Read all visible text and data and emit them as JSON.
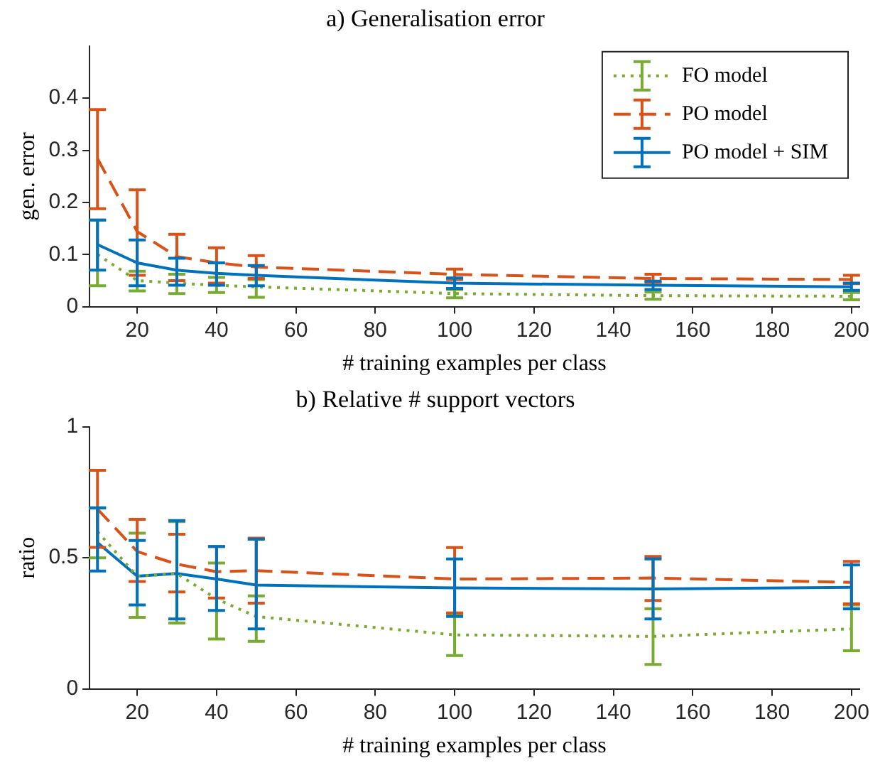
{
  "chart_data": [
    {
      "type": "line",
      "title": "a) Generalisation error",
      "xlabel": "# training examples per class",
      "ylabel": "gen. error",
      "x": [
        10,
        20,
        30,
        40,
        50,
        100,
        150,
        200
      ],
      "xlim": [
        8,
        202
      ],
      "xticks": [
        20,
        40,
        60,
        80,
        100,
        120,
        140,
        160,
        180,
        200
      ],
      "ylim": [
        0,
        0.5
      ],
      "yticks": [
        0,
        0.1,
        0.2,
        0.3,
        0.4
      ],
      "legend": "top right",
      "series": [
        {
          "name": "FO model",
          "color": "#77ac30",
          "line_style": "dotted",
          "values": [
            0.1,
            0.05,
            0.045,
            0.041,
            0.038,
            0.025,
            0.021,
            0.02
          ],
          "errors": [
            [
              0.04,
              0.166
            ],
            [
              0.03,
              0.068
            ],
            [
              0.025,
              0.062
            ],
            [
              0.027,
              0.056
            ],
            [
              0.018,
              0.052
            ],
            [
              0.017,
              0.033
            ],
            [
              0.014,
              0.028
            ],
            [
              0.013,
              0.027
            ]
          ]
        },
        {
          "name": "PO model",
          "color": "#d95319",
          "line_style": "dashed",
          "values": [
            0.284,
            0.144,
            0.096,
            0.084,
            0.076,
            0.062,
            0.054,
            0.052
          ],
          "errors": [
            [
              0.188,
              0.378
            ],
            [
              0.06,
              0.224
            ],
            [
              0.05,
              0.139
            ],
            [
              0.045,
              0.113
            ],
            [
              0.054,
              0.098
            ],
            [
              0.052,
              0.072
            ],
            [
              0.046,
              0.062
            ],
            [
              0.044,
              0.06
            ]
          ]
        },
        {
          "name": "PO model + SIM",
          "color": "#0072bd",
          "line_style": "solid",
          "values": [
            0.119,
            0.084,
            0.07,
            0.064,
            0.06,
            0.045,
            0.041,
            0.038
          ],
          "errors": [
            [
              0.07,
              0.166
            ],
            [
              0.04,
              0.128
            ],
            [
              0.041,
              0.093
            ],
            [
              0.041,
              0.084
            ],
            [
              0.04,
              0.079
            ],
            [
              0.035,
              0.055
            ],
            [
              0.033,
              0.049
            ],
            [
              0.031,
              0.045
            ]
          ]
        }
      ]
    },
    {
      "type": "line",
      "title": "b) Relative # support vectors",
      "xlabel": "# training examples per class",
      "ylabel": "ratio",
      "x": [
        10,
        20,
        30,
        40,
        50,
        100,
        150,
        200
      ],
      "xlim": [
        8,
        202
      ],
      "xticks": [
        20,
        40,
        60,
        80,
        100,
        120,
        140,
        160,
        180,
        200
      ],
      "ylim": [
        0,
        1
      ],
      "yticks": [
        0,
        0.5,
        1
      ],
      "series": [
        {
          "color": "#77ac30",
          "line_style": "dotted",
          "values": [
            0.6,
            0.43,
            0.44,
            0.343,
            0.276,
            0.206,
            0.2,
            0.229
          ],
          "errors": [
            [
              0.5,
              0.69
            ],
            [
              0.273,
              0.594
            ],
            [
              0.251,
              0.638
            ],
            [
              0.19,
              0.48
            ],
            [
              0.181,
              0.355
            ],
            [
              0.127,
              0.285
            ],
            [
              0.093,
              0.305
            ],
            [
              0.145,
              0.32
            ]
          ]
        },
        {
          "color": "#d95319",
          "line_style": "dashed",
          "values": [
            0.686,
            0.524,
            0.476,
            0.447,
            0.451,
            0.419,
            0.423,
            0.406
          ],
          "errors": [
            [
              0.54,
              0.834
            ],
            [
              0.41,
              0.647
            ],
            [
              0.37,
              0.59
            ],
            [
              0.347,
              0.543
            ],
            [
              0.327,
              0.575
            ],
            [
              0.29,
              0.539
            ],
            [
              0.337,
              0.505
            ],
            [
              0.324,
              0.486
            ]
          ]
        },
        {
          "color": "#0072bd",
          "line_style": "solid",
          "values": [
            0.558,
            0.43,
            0.44,
            0.419,
            0.396,
            0.385,
            0.381,
            0.387
          ],
          "errors": [
            [
              0.45,
              0.691
            ],
            [
              0.32,
              0.566
            ],
            [
              0.267,
              0.642
            ],
            [
              0.299,
              0.543
            ],
            [
              0.229,
              0.571
            ],
            [
              0.276,
              0.496
            ],
            [
              0.267,
              0.496
            ],
            [
              0.305,
              0.473
            ]
          ]
        }
      ]
    }
  ]
}
